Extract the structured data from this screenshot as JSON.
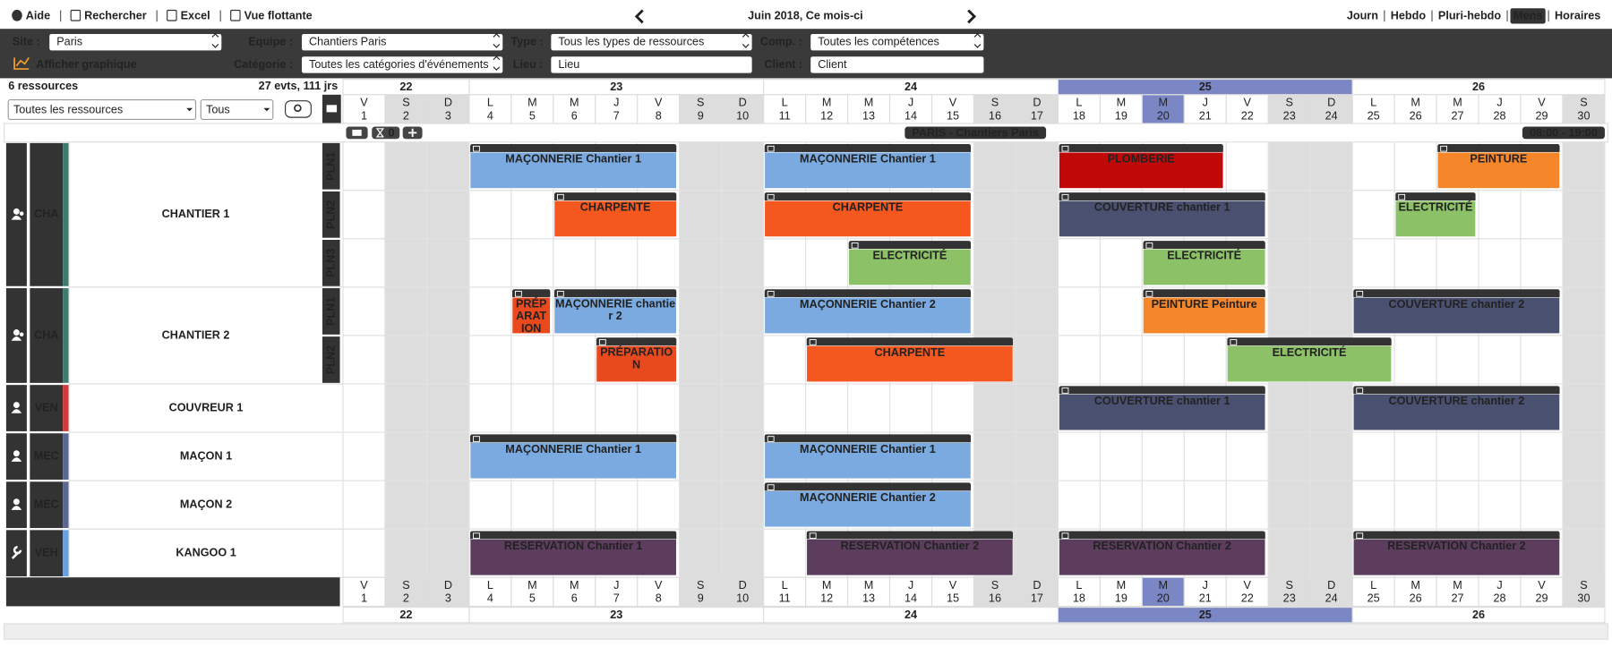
{
  "topbar": {
    "left": [
      "Aide",
      "Rechercher",
      "Excel",
      "Vue flottante"
    ],
    "period": "Juin 2018, Ce mois-ci",
    "views": [
      "Journ",
      "Hebdo",
      "Pluri-hebdo",
      "Mens",
      "Horaires"
    ],
    "active_view": "Mens"
  },
  "filters": {
    "site_label": "Site :",
    "site": "Paris",
    "team_label": "Equipe :",
    "team": "Chantiers Paris",
    "type_label": "Type :",
    "type": "Tous les types de ressources",
    "comp_label": "Comp. :",
    "comp": "Toutes les compétences",
    "graph": "Afficher graphique",
    "category_label": "Catégorie :",
    "category": "Toutes les catégories d'événements",
    "place_label": "Lieu :",
    "place": "Lieu",
    "client_label": "Client :",
    "client": "Client"
  },
  "summary": {
    "resources": "6 ressources",
    "events": "27 evts, 111 jrs",
    "resource_select": "Toutes les ressources",
    "status_select": "Tous"
  },
  "toolbar": {
    "count": "0",
    "title": "PARIS - Chantiers Paris",
    "hours": "08:00 - 19:00"
  },
  "weeks": [
    {
      "label": "22",
      "first": "1",
      "last": "3"
    },
    {
      "label": "23",
      "first": "4",
      "last": "10"
    },
    {
      "label": "24",
      "first": "11",
      "last": "17"
    },
    {
      "label": "25",
      "first": "18",
      "last": "24",
      "current": true
    },
    {
      "label": "26",
      "first": "25",
      "last": "30"
    }
  ],
  "today": "20",
  "days": [
    {
      "d": "V",
      "n": "1"
    },
    {
      "d": "S",
      "n": "2"
    },
    {
      "d": "D",
      "n": "3"
    },
    {
      "d": "L",
      "n": "4"
    },
    {
      "d": "M",
      "n": "5"
    },
    {
      "d": "M",
      "n": "6"
    },
    {
      "d": "J",
      "n": "7"
    },
    {
      "d": "V",
      "n": "8"
    },
    {
      "d": "S",
      "n": "9"
    },
    {
      "d": "D",
      "n": "10"
    },
    {
      "d": "L",
      "n": "11"
    },
    {
      "d": "M",
      "n": "12"
    },
    {
      "d": "M",
      "n": "13"
    },
    {
      "d": "J",
      "n": "14"
    },
    {
      "d": "V",
      "n": "15"
    },
    {
      "d": "S",
      "n": "16"
    },
    {
      "d": "D",
      "n": "17"
    },
    {
      "d": "L",
      "n": "18"
    },
    {
      "d": "M",
      "n": "19"
    },
    {
      "d": "M",
      "n": "20"
    },
    {
      "d": "J",
      "n": "21"
    },
    {
      "d": "V",
      "n": "22"
    },
    {
      "d": "S",
      "n": "23"
    },
    {
      "d": "D",
      "n": "24"
    },
    {
      "d": "L",
      "n": "25"
    },
    {
      "d": "M",
      "n": "26"
    },
    {
      "d": "M",
      "n": "27"
    },
    {
      "d": "J",
      "n": "28"
    },
    {
      "d": "V",
      "n": "29"
    },
    {
      "d": "S",
      "n": "30"
    }
  ],
  "resources": [
    {
      "code": "CHA",
      "name": "CHANTIER 1",
      "icon": "group",
      "color": "#3f7a6e",
      "lines": [
        {
          "label": "PLN1",
          "events": [
            {
              "label": "MAÇONNERIE Chantier 1",
              "start": "4",
              "end": "8",
              "color": "#7aaadf"
            },
            {
              "label": "MAÇONNERIE Chantier 1",
              "start": "11",
              "end": "15",
              "color": "#7aaadf"
            },
            {
              "label": "PLOMBERIE",
              "start": "18",
              "end": "21",
              "color": "#c00a0a"
            },
            {
              "label": "PEINTURE",
              "start": "27",
              "end": "29",
              "color": "#f5862a"
            }
          ]
        },
        {
          "label": "PLN2",
          "events": [
            {
              "label": "CHARPENTE",
              "start": "6",
              "end": "8",
              "color": "#f4581e"
            },
            {
              "label": "CHARPENTE",
              "start": "11",
              "end": "15",
              "color": "#f4581e"
            },
            {
              "label": "COUVERTURE chantier 1",
              "start": "18",
              "end": "22",
              "color": "#4a5170"
            },
            {
              "label": "ELECTRICITÉ",
              "start": "26",
              "end": "27",
              "color": "#8cc168"
            }
          ]
        },
        {
          "label": "PLN3",
          "events": [
            {
              "label": "ELECTRICITÉ",
              "start": "13",
              "end": "15",
              "color": "#8cc168"
            },
            {
              "label": "ELECTRICITÉ",
              "start": "20",
              "end": "22",
              "color": "#8cc168"
            }
          ]
        }
      ]
    },
    {
      "code": "CHA",
      "name": "CHANTIER 2",
      "icon": "group",
      "color": "#3f7a6e",
      "lines": [
        {
          "label": "PLN1",
          "events": [
            {
              "label": "PRÉPARATION",
              "start": "5",
              "end": "5",
              "color": "#e84a1e"
            },
            {
              "label": "MAÇONNERIE chantier 2",
              "start": "6",
              "end": "8",
              "color": "#7aaadf"
            },
            {
              "label": "MAÇONNERIE Chantier 2",
              "start": "11",
              "end": "15",
              "color": "#7aaadf"
            },
            {
              "label": "PEINTURE Peinture",
              "start": "20",
              "end": "22",
              "color": "#f5862a"
            },
            {
              "label": "COUVERTURE chantier 2",
              "start": "25",
              "end": "29",
              "color": "#4a5170"
            }
          ]
        },
        {
          "label": "PLN2",
          "events": [
            {
              "label": "PRÉPARATION",
              "start": "7",
              "end": "8",
              "color": "#e84a1e"
            },
            {
              "label": "CHARPENTE",
              "start": "12",
              "end": "16",
              "color": "#f4581e"
            },
            {
              "label": "ELECTRICITÉ",
              "start": "22",
              "end": "25",
              "color": "#8cc168"
            }
          ]
        }
      ]
    },
    {
      "code": "VEN",
      "name": "COUVREUR 1",
      "icon": "person",
      "color": "#d33a3a",
      "lines": [
        {
          "events": [
            {
              "label": "COUVERTURE chantier 1",
              "start": "18",
              "end": "22",
              "color": "#4a5170"
            },
            {
              "label": "COUVERTURE chantier 2",
              "start": "25",
              "end": "29",
              "color": "#4a5170"
            }
          ]
        }
      ]
    },
    {
      "code": "MEC",
      "name": "MAÇON 1",
      "icon": "person",
      "color": "#5a6890",
      "lines": [
        {
          "events": [
            {
              "label": "MAÇONNERIE Chantier 1",
              "start": "4",
              "end": "8",
              "color": "#7aaadf"
            },
            {
              "label": "MAÇONNERIE Chantier 1",
              "start": "11",
              "end": "15",
              "color": "#7aaadf"
            }
          ]
        }
      ]
    },
    {
      "code": "MEC",
      "name": "MAÇON 2",
      "icon": "person",
      "color": "#5a6890",
      "lines": [
        {
          "events": [
            {
              "label": "MAÇONNERIE Chantier 2",
              "start": "11",
              "end": "15",
              "color": "#7aaadf"
            }
          ]
        }
      ]
    },
    {
      "code": "VEH",
      "name": "KANGOO 1",
      "icon": "wrench",
      "color": "#6aa0e0",
      "lines": [
        {
          "events": [
            {
              "label": "RESERVATION Chantier 1",
              "start": "4",
              "end": "8",
              "color": "#5c3d5e"
            },
            {
              "label": "RESERVATION Chantier 2",
              "start": "12",
              "end": "16",
              "color": "#5c3d5e"
            },
            {
              "label": "RESERVATION Chantier 2",
              "start": "18",
              "end": "22",
              "color": "#5c3d5e"
            },
            {
              "label": "RESERVATION Chantier 2",
              "start": "25",
              "end": "29",
              "color": "#5c3d5e"
            }
          ]
        }
      ]
    }
  ]
}
